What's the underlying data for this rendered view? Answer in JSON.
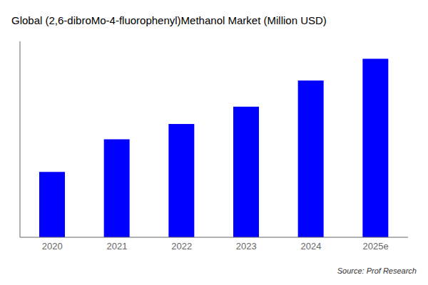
{
  "chart_data": {
    "type": "bar",
    "title": "Global (2,6-dibroMo-4-fluorophenyl)Methanol Market (Million USD)",
    "categories": [
      "2020",
      "2021",
      "2022",
      "2023",
      "2024",
      "2025e"
    ],
    "values": [
      30,
      45,
      52,
      60,
      72,
      82
    ],
    "color": "#0000FF",
    "ylim": [
      0,
      90
    ],
    "yticks": [],
    "tick_labels": "x",
    "annotations": [
      "Source: Prof Research"
    ]
  }
}
